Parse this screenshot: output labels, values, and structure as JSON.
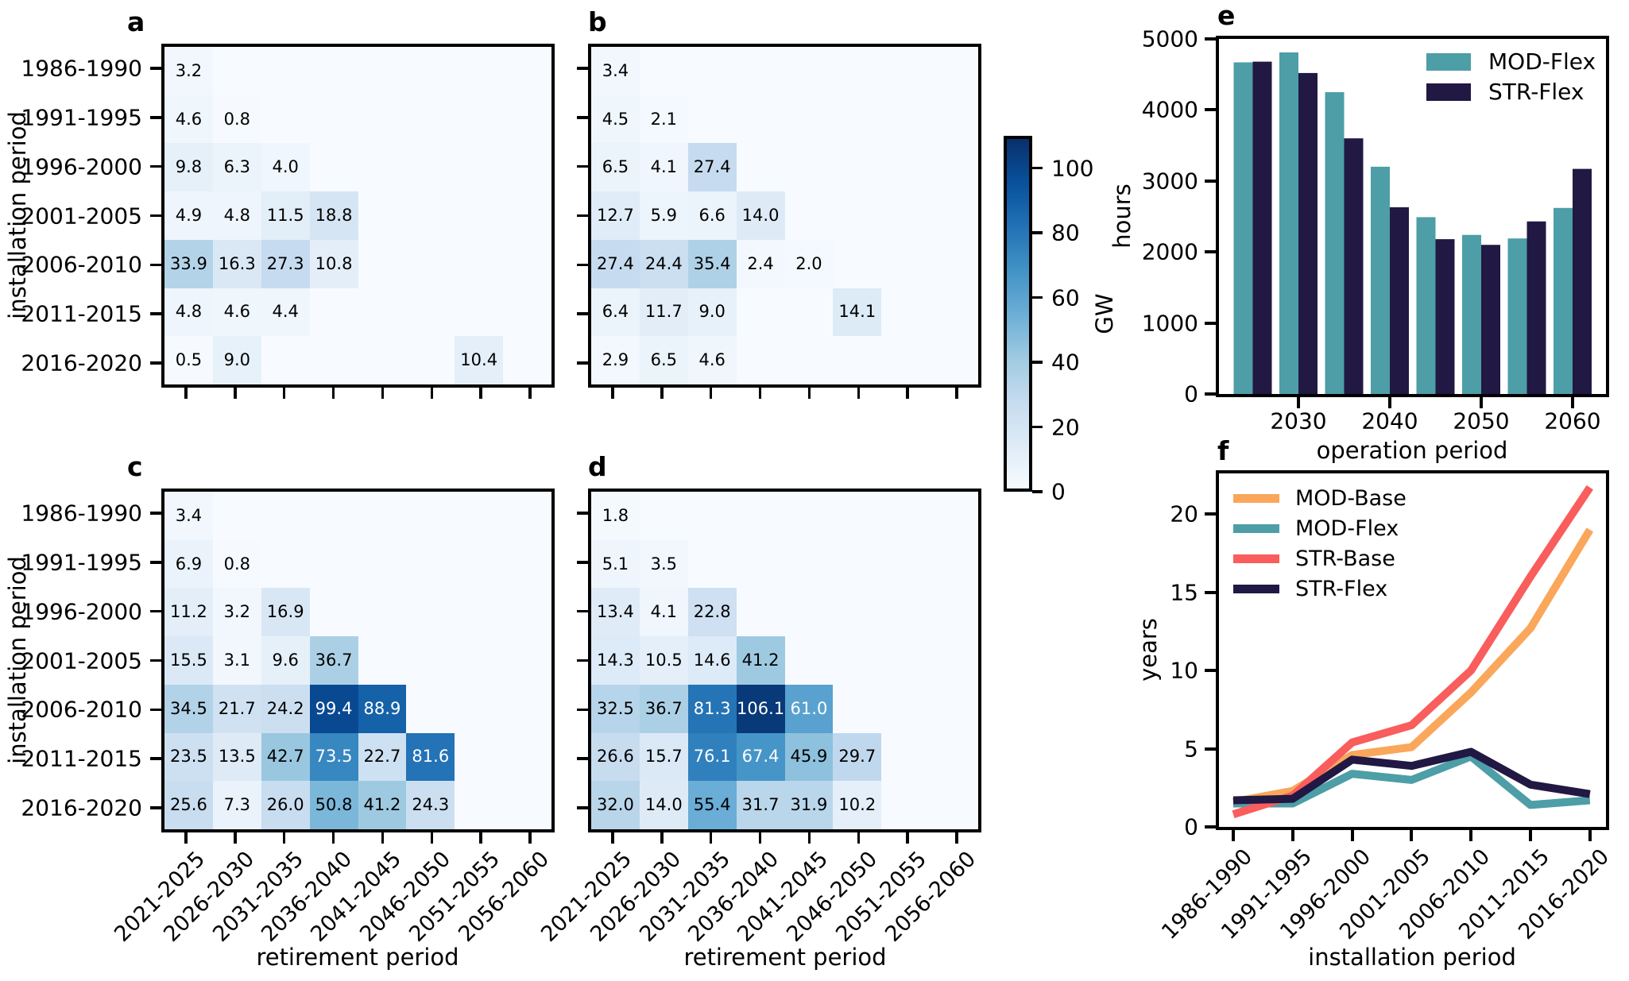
{
  "figure": {
    "panel_letters": [
      "a",
      "b",
      "c",
      "d",
      "e",
      "f"
    ],
    "colorbar": {
      "label": "GW",
      "ticks": [
        0,
        20,
        40,
        60,
        80,
        100
      ],
      "vmin": 0,
      "vmax": 110
    }
  },
  "colors": {
    "mod_base": "#FAA75B",
    "mod_flex": "#4D9EA6",
    "str_base": "#F95D5C",
    "str_flex": "#211843",
    "spine": "#000000",
    "blues_colormap": [
      "#f7fbff",
      "#deebf7",
      "#c6dbef",
      "#9ecae1",
      "#6baed6",
      "#4292c6",
      "#2171b5",
      "#08519c",
      "#08306b"
    ]
  },
  "chart_data": [
    {
      "panel": "a",
      "type": "heatmap",
      "unit": "GW",
      "ylabel": "installation period",
      "rows": [
        "1986-1990",
        "1991-1995",
        "1996-2000",
        "2001-2005",
        "2006-2010",
        "2011-2015",
        "2016-2020"
      ],
      "cols": [
        "2021-2025",
        "2026-2030",
        "2031-2035",
        "2036-2040",
        "2041-2045",
        "2046-2050",
        "2051-2055",
        "2056-2060"
      ],
      "show_row_labels": true,
      "show_col_labels": false,
      "values": [
        [
          3.2,
          null,
          null,
          null,
          null,
          null,
          null,
          null
        ],
        [
          4.6,
          0.8,
          null,
          null,
          null,
          null,
          null,
          null
        ],
        [
          9.8,
          6.3,
          4.0,
          null,
          null,
          null,
          null,
          null
        ],
        [
          4.9,
          4.8,
          11.5,
          18.8,
          null,
          null,
          null,
          null
        ],
        [
          33.9,
          16.3,
          27.3,
          10.8,
          null,
          null,
          null,
          null
        ],
        [
          4.8,
          4.6,
          4.4,
          null,
          null,
          null,
          null,
          null
        ],
        [
          0.5,
          9.0,
          null,
          null,
          null,
          null,
          10.4,
          null
        ]
      ]
    },
    {
      "panel": "b",
      "type": "heatmap",
      "unit": "GW",
      "rows": [
        "1986-1990",
        "1991-1995",
        "1996-2000",
        "2001-2005",
        "2006-2010",
        "2011-2015",
        "2016-2020"
      ],
      "cols": [
        "2021-2025",
        "2026-2030",
        "2031-2035",
        "2036-2040",
        "2041-2045",
        "2046-2050",
        "2051-2055",
        "2056-2060"
      ],
      "show_row_labels": false,
      "show_col_labels": false,
      "values": [
        [
          3.4,
          null,
          null,
          null,
          null,
          null,
          null,
          null
        ],
        [
          4.5,
          2.1,
          null,
          null,
          null,
          null,
          null,
          null
        ],
        [
          6.5,
          4.1,
          27.4,
          null,
          null,
          null,
          null,
          null
        ],
        [
          12.7,
          5.9,
          6.6,
          14.0,
          null,
          null,
          null,
          null
        ],
        [
          27.4,
          24.4,
          35.4,
          2.4,
          2.0,
          null,
          null,
          null
        ],
        [
          6.4,
          11.7,
          9.0,
          null,
          null,
          14.1,
          null,
          null
        ],
        [
          2.9,
          6.5,
          4.6,
          null,
          null,
          null,
          null,
          null
        ]
      ]
    },
    {
      "panel": "c",
      "type": "heatmap",
      "unit": "GW",
      "ylabel": "installation period",
      "xlabel": "retirement period",
      "rows": [
        "1986-1990",
        "1991-1995",
        "1996-2000",
        "2001-2005",
        "2006-2010",
        "2011-2015",
        "2016-2020"
      ],
      "cols": [
        "2021-2025",
        "2026-2030",
        "2031-2035",
        "2036-2040",
        "2041-2045",
        "2046-2050",
        "2051-2055",
        "2056-2060"
      ],
      "show_row_labels": true,
      "show_col_labels": true,
      "values": [
        [
          3.4,
          null,
          null,
          null,
          null,
          null,
          null,
          null
        ],
        [
          6.9,
          0.8,
          null,
          null,
          null,
          null,
          null,
          null
        ],
        [
          11.2,
          3.2,
          16.9,
          null,
          null,
          null,
          null,
          null
        ],
        [
          15.5,
          3.1,
          9.6,
          36.7,
          null,
          null,
          null,
          null
        ],
        [
          34.5,
          21.7,
          24.2,
          99.4,
          88.9,
          null,
          null,
          null
        ],
        [
          23.5,
          13.5,
          42.7,
          73.5,
          22.7,
          81.6,
          null,
          null
        ],
        [
          25.6,
          7.3,
          26.0,
          50.8,
          41.2,
          24.3,
          null,
          null
        ]
      ]
    },
    {
      "panel": "d",
      "type": "heatmap",
      "unit": "GW",
      "xlabel": "retirement period",
      "rows": [
        "1986-1990",
        "1991-1995",
        "1996-2000",
        "2001-2005",
        "2006-2010",
        "2011-2015",
        "2016-2020"
      ],
      "cols": [
        "2021-2025",
        "2026-2030",
        "2031-2035",
        "2036-2040",
        "2041-2045",
        "2046-2050",
        "2051-2055",
        "2056-2060"
      ],
      "show_row_labels": false,
      "show_col_labels": true,
      "values": [
        [
          1.8,
          null,
          null,
          null,
          null,
          null,
          null,
          null
        ],
        [
          5.1,
          3.5,
          null,
          null,
          null,
          null,
          null,
          null
        ],
        [
          13.4,
          4.1,
          22.8,
          null,
          null,
          null,
          null,
          null
        ],
        [
          14.3,
          10.5,
          14.6,
          41.2,
          null,
          null,
          null,
          null
        ],
        [
          32.5,
          36.7,
          81.3,
          106.1,
          61.0,
          null,
          null,
          null
        ],
        [
          26.6,
          15.7,
          76.1,
          67.4,
          45.9,
          29.7,
          null,
          null
        ],
        [
          32.0,
          14.0,
          55.4,
          31.7,
          31.9,
          10.2,
          null,
          null
        ]
      ]
    },
    {
      "panel": "e",
      "type": "bar",
      "xlabel": "operation period",
      "ylabel": "hours",
      "categories": [
        2025,
        2030,
        2035,
        2040,
        2045,
        2050,
        2055,
        2060
      ],
      "xtick_labels": [
        2030,
        2040,
        2050,
        2060
      ],
      "ylim": [
        0,
        5000
      ],
      "yticks": [
        0,
        1000,
        2000,
        3000,
        4000,
        5000
      ],
      "legend_position": "upper right",
      "series": [
        {
          "name": "MOD-Flex",
          "color_key": "mod_flex",
          "values": [
            4670,
            4810,
            4250,
            3200,
            2490,
            2240,
            2190,
            2620
          ]
        },
        {
          "name": "STR-Flex",
          "color_key": "str_flex",
          "values": [
            4680,
            4520,
            3600,
            2630,
            2180,
            2100,
            2430,
            3170
          ]
        }
      ]
    },
    {
      "panel": "f",
      "type": "line",
      "xlabel": "installation period",
      "ylabel": "years",
      "categories": [
        "1986-1990",
        "1991-1995",
        "1996-2000",
        "2001-2005",
        "2006-2010",
        "2011-2015",
        "2016-2020"
      ],
      "ylim": [
        0,
        22.6
      ],
      "yticks": [
        0,
        5,
        10,
        15,
        20
      ],
      "legend_position": "upper left",
      "series": [
        {
          "name": "MOD-Base",
          "color_key": "mod_base",
          "values": [
            1.6,
            2.3,
            4.6,
            5.1,
            8.6,
            12.7,
            19.0
          ]
        },
        {
          "name": "MOD-Flex",
          "color_key": "mod_flex",
          "values": [
            1.5,
            1.5,
            3.4,
            3.0,
            4.5,
            1.4,
            1.7
          ]
        },
        {
          "name": "STR-Base",
          "color_key": "str_base",
          "values": [
            0.8,
            2.0,
            5.4,
            6.5,
            10.0,
            16.0,
            21.7
          ]
        },
        {
          "name": "STR-Flex",
          "color_key": "str_flex",
          "values": [
            1.7,
            1.8,
            4.3,
            3.9,
            4.8,
            2.7,
            2.1
          ]
        }
      ]
    }
  ]
}
